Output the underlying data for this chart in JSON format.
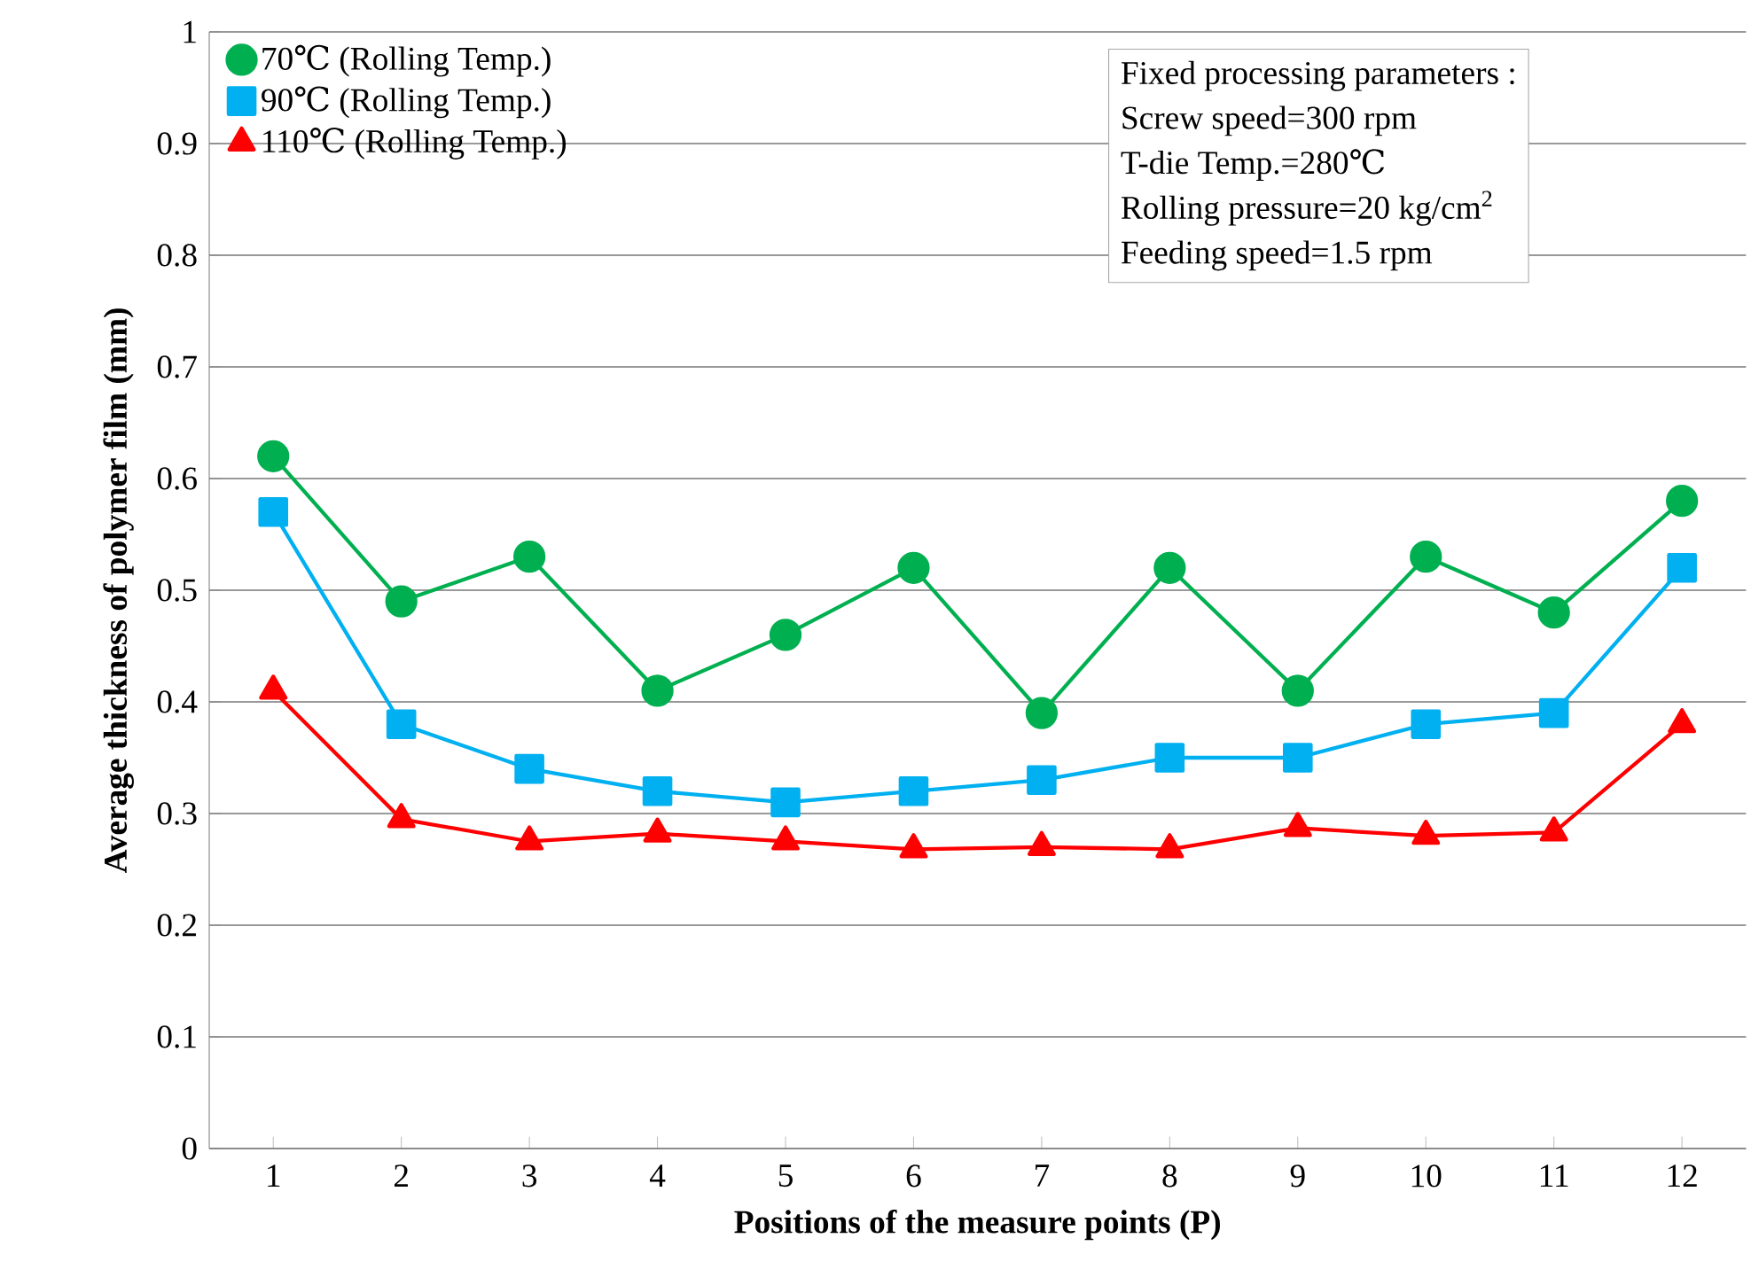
{
  "chart_data": {
    "type": "line",
    "xlabel": "Positions of the measure points (P)",
    "ylabel": "Average thickness of polymer film (mm)",
    "categories": [
      "1",
      "2",
      "3",
      "4",
      "5",
      "6",
      "7",
      "8",
      "9",
      "10",
      "11",
      "12"
    ],
    "series": [
      {
        "name": "70℃ (Rolling Temp.)",
        "color": "#00b050",
        "marker": "circle",
        "values": [
          0.62,
          0.49,
          0.53,
          0.41,
          0.46,
          0.52,
          0.39,
          0.52,
          0.41,
          0.53,
          0.48,
          0.58
        ]
      },
      {
        "name": "90℃ (Rolling Temp.)",
        "color": "#00b0f0",
        "marker": "square",
        "values": [
          0.57,
          0.38,
          0.34,
          0.32,
          0.31,
          0.32,
          0.33,
          0.35,
          0.35,
          0.38,
          0.39,
          0.52
        ]
      },
      {
        "name": "110℃ (Rolling Temp.)",
        "color": "#ff0000",
        "marker": "triangle",
        "values": [
          0.41,
          0.295,
          0.275,
          0.282,
          0.275,
          0.268,
          0.27,
          0.268,
          0.287,
          0.28,
          0.283,
          0.38
        ]
      }
    ],
    "ylim": [
      0,
      1
    ],
    "yticks": [
      0,
      0.1,
      0.2,
      0.3,
      0.4,
      0.5,
      0.6,
      0.7,
      0.8,
      0.9,
      1
    ],
    "grid": "y",
    "legend": "top left",
    "annotations": [
      "Fixed processing parameters :",
      "Screw speed=300 rpm",
      "T-die Temp.=280℃",
      "Rolling pressure=20 kg/cm$^{2}$",
      "Feeding speed=1.5 rpm"
    ]
  }
}
